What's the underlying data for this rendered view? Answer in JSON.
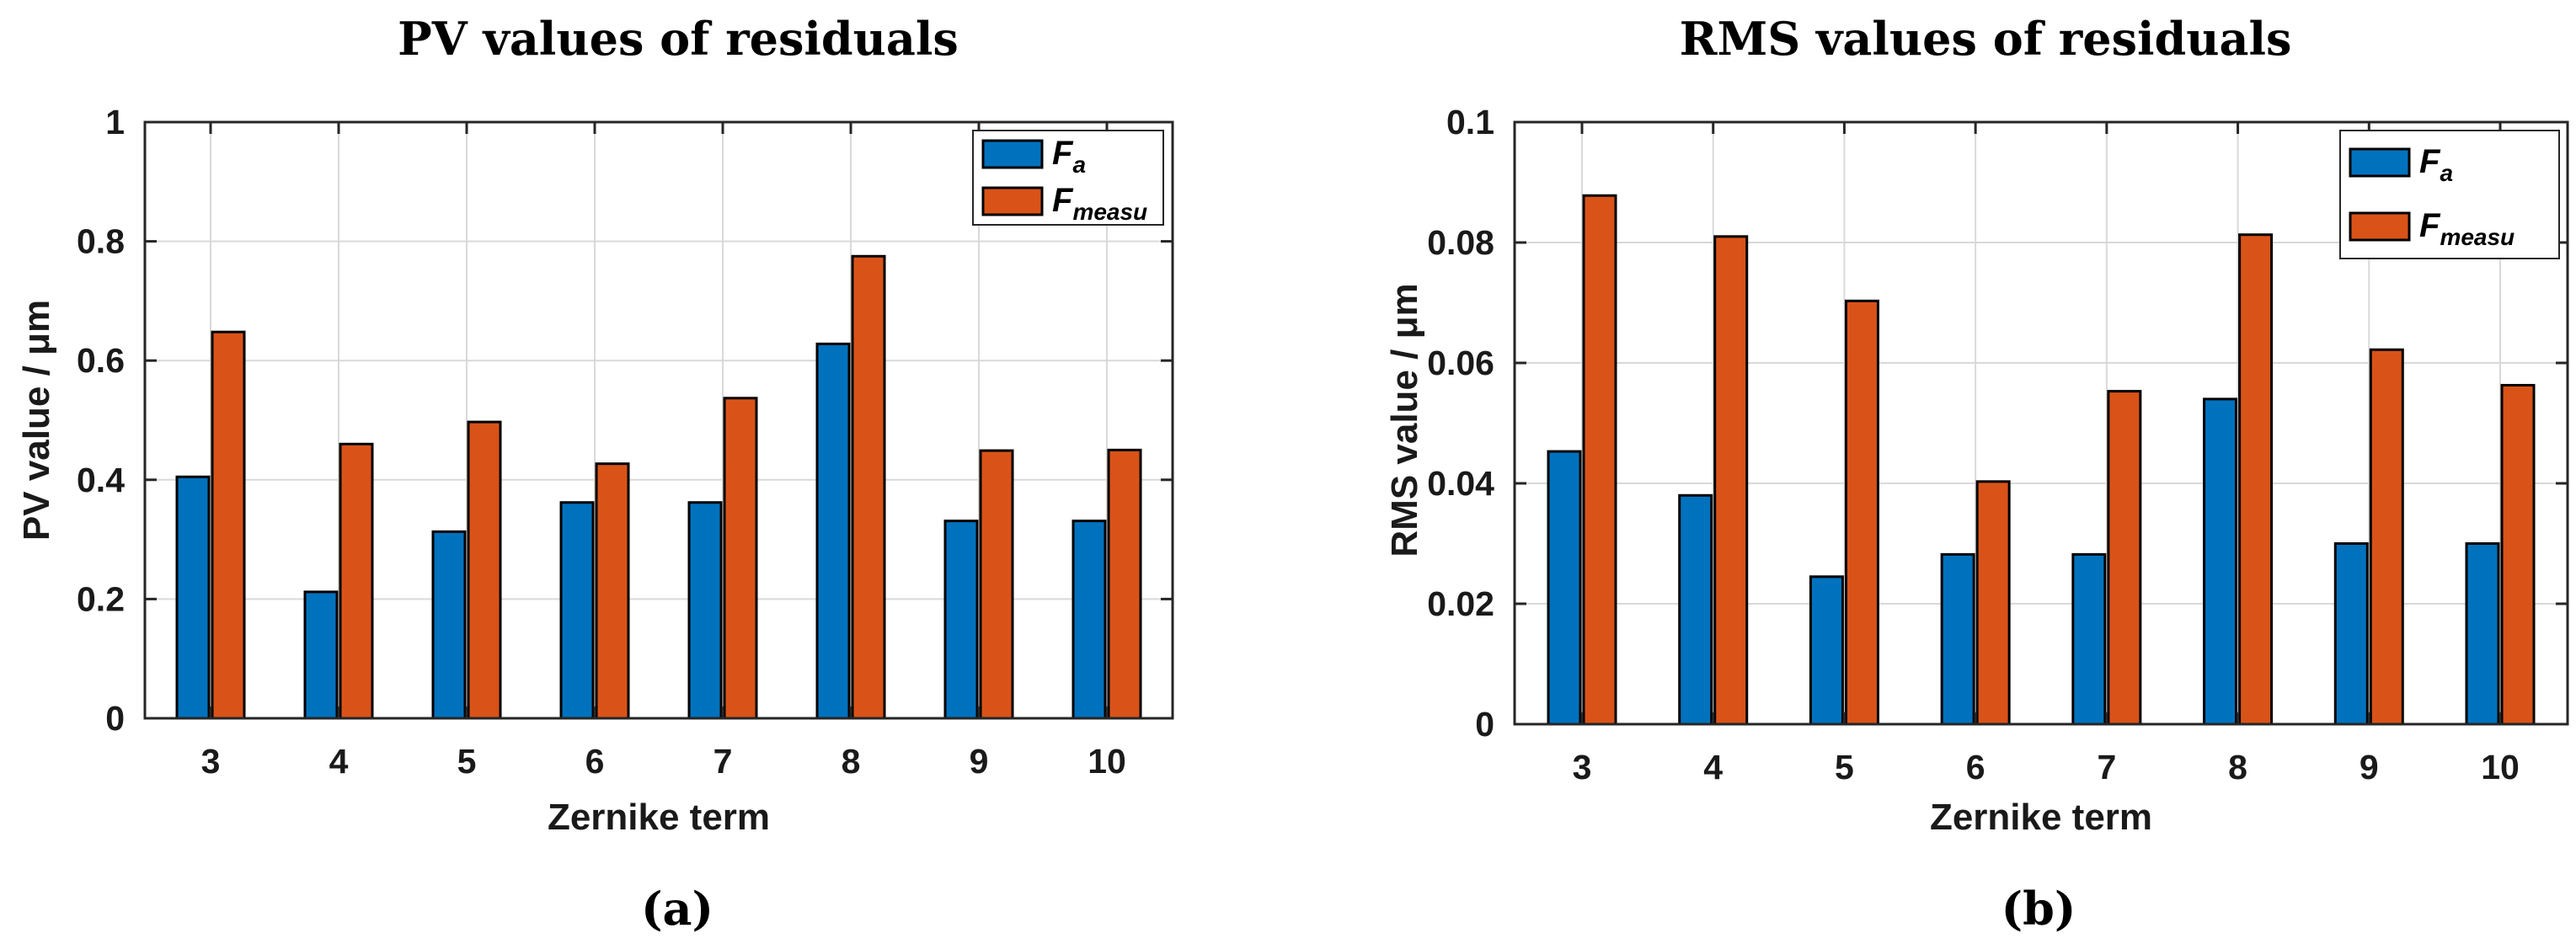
{
  "chart_data": [
    {
      "type": "bar",
      "title": "PV values of residuals",
      "xlabel": "Zernike term",
      "ylabel": "PV value / μm",
      "categories": [
        "3",
        "4",
        "5",
        "6",
        "7",
        "8",
        "9",
        "10"
      ],
      "series": [
        {
          "name": "F_a",
          "label_main": "F",
          "label_sub": "a",
          "color": "#0072BD",
          "values": [
            0.405,
            0.212,
            0.313,
            0.362,
            0.362,
            0.628,
            0.331,
            0.331
          ]
        },
        {
          "name": "F_measu",
          "label_main": "F",
          "label_sub": "measu",
          "color": "#D95319",
          "values": [
            0.648,
            0.46,
            0.497,
            0.427,
            0.537,
            0.775,
            0.449,
            0.45
          ]
        }
      ],
      "ylim": [
        0,
        1
      ],
      "yticks": [
        0,
        0.2,
        0.4,
        0.6,
        0.8,
        1
      ],
      "ytick_labels": [
        "0",
        "0.2",
        "0.4",
        "0.6",
        "0.8",
        "1"
      ],
      "grid": true,
      "legend": "top-right",
      "caption": "(a)"
    },
    {
      "type": "bar",
      "title": "RMS values of residuals",
      "xlabel": "Zernike term",
      "ylabel": "RMS value / μm",
      "categories": [
        "3",
        "4",
        "5",
        "6",
        "7",
        "8",
        "9",
        "10"
      ],
      "series": [
        {
          "name": "F_a",
          "label_main": "F",
          "label_sub": "a",
          "color": "#0072BD",
          "values": [
            0.0453,
            0.038,
            0.0245,
            0.0282,
            0.0282,
            0.054,
            0.03,
            0.03
          ]
        },
        {
          "name": "F_measu",
          "label_main": "F",
          "label_sub": "measu",
          "color": "#D95319",
          "values": [
            0.0878,
            0.081,
            0.0703,
            0.0403,
            0.0553,
            0.0813,
            0.0622,
            0.0563
          ]
        }
      ],
      "ylim": [
        0,
        0.1
      ],
      "yticks": [
        0,
        0.02,
        0.04,
        0.06,
        0.08,
        0.1
      ],
      "ytick_labels": [
        "0",
        "0.02",
        "0.04",
        "0.06",
        "0.08",
        "0.1"
      ],
      "grid": true,
      "legend": "top-right",
      "caption": "(b)"
    }
  ]
}
